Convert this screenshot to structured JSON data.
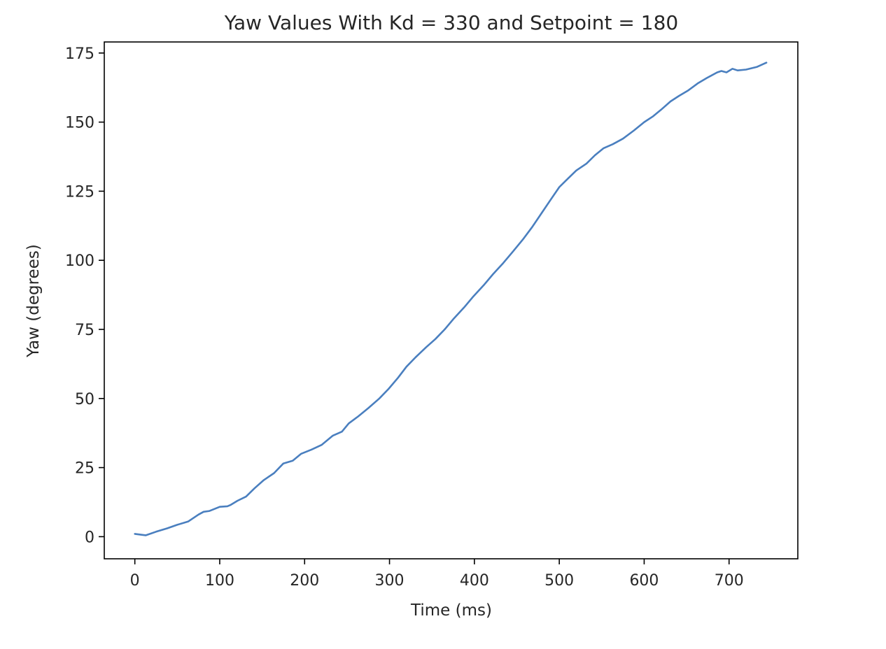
{
  "chart_data": {
    "type": "line",
    "title": "Yaw Values With Kd = 330 and Setpoint = 180",
    "xlabel": "Time (ms)",
    "ylabel": "Yaw (degrees)",
    "xlim": [
      -36,
      781
    ],
    "ylim": [
      -8,
      179
    ],
    "xticks": [
      0,
      100,
      200,
      300,
      400,
      500,
      600,
      700
    ],
    "yticks": [
      0,
      25,
      50,
      75,
      100,
      125,
      150,
      175
    ],
    "grid": false,
    "legend": "none",
    "series": [
      {
        "color": "#4a7fbf",
        "x": [
          0,
          13,
          25,
          38,
          50,
          63,
          75,
          81,
          88,
          100,
          109,
          113,
          121,
          131,
          141,
          152,
          164,
          175,
          186,
          196,
          208,
          220,
          233,
          244,
          252,
          263,
          275,
          288,
          299,
          310,
          320,
          331,
          343,
          354,
          365,
          376,
          388,
          399,
          411,
          422,
          434,
          445,
          457,
          468,
          479,
          490,
          500,
          510,
          520,
          532,
          542,
          552,
          563,
          575,
          588,
          600,
          610,
          620,
          631,
          641,
          652,
          663,
          674,
          686,
          691,
          697,
          704,
          710,
          720,
          733,
          744
        ],
        "y": [
          1,
          0.5,
          1.8,
          3,
          4.3,
          5.5,
          8,
          9,
          9.3,
          10.8,
          11,
          11.5,
          13,
          14.5,
          17.5,
          20.5,
          23,
          26.5,
          27.5,
          30,
          31.5,
          33.2,
          36.5,
          38,
          41,
          43.5,
          46.5,
          50,
          53.5,
          57.5,
          61.5,
          65,
          68.5,
          71.5,
          75,
          79,
          83,
          87,
          91,
          95,
          99,
          103,
          107.5,
          112,
          117,
          122,
          126.5,
          129.5,
          132.5,
          135,
          138,
          140.5,
          142,
          144,
          147,
          150,
          152,
          154.5,
          157.5,
          159.5,
          161.5,
          164,
          166,
          168,
          168.5,
          168,
          169.3,
          168.7,
          169,
          170,
          171.5
        ]
      }
    ]
  }
}
